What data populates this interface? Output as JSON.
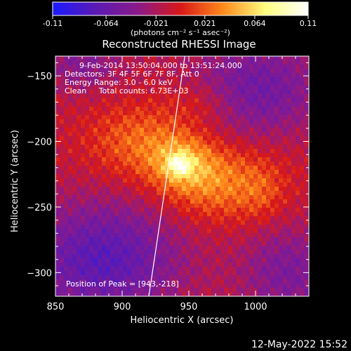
{
  "chart_data": {
    "type": "heatmap",
    "title": "Reconstructed RHESSI Image",
    "xlabel": "Heliocentric X (arcsec)",
    "ylabel": "Heliocentric Y (arcsec)",
    "xlim": [
      850,
      1040
    ],
    "ylim": [
      -318,
      -135
    ],
    "x_ticks": [
      850,
      900,
      950,
      1000
    ],
    "y_ticks": [
      -150,
      -200,
      -250,
      -300
    ],
    "colorbar": {
      "range": [
        -0.11,
        0.11
      ],
      "ticks": [
        "-0.11",
        "-0.064",
        "-0.021",
        "0.021",
        "0.064",
        "0.11"
      ],
      "unit_label": "(photons cm⁻² s⁻¹ asec⁻²)",
      "colors": [
        "#1a1aff",
        "#5a1ab4",
        "#8a1a8a",
        "#d81818",
        "#ff8a1a",
        "#ffff80",
        "#ffffff"
      ]
    },
    "annotations": [
      "9-Feb-2014 13:50:04.000 to 13:51:24.000",
      "Detectors: 3F 4F 5F 6F 7F 8F, Att 0",
      "Energy Range: 3.0 - 6.0 keV",
      "Clean     Total counts: 6.73E+03"
    ],
    "peak_label": "Position of Peak = [943,-218]",
    "peak": {
      "x": 943,
      "y": -218,
      "value": 0.11
    },
    "sources": [
      {
        "x": 943,
        "y": -218,
        "sx": 5,
        "sy": 5,
        "amp": 0.055
      },
      {
        "x": 945,
        "y": -217,
        "sx": 16,
        "sy": 14,
        "amp": 0.045
      },
      {
        "x": 975,
        "y": -232,
        "sx": 30,
        "sy": 20,
        "amp": 0.045
      },
      {
        "x": 915,
        "y": -200,
        "sx": 28,
        "sy": 20,
        "amp": 0.038
      },
      {
        "x": 960,
        "y": -170,
        "sx": 20,
        "sy": 13,
        "amp": 0.02
      },
      {
        "x": 1005,
        "y": -240,
        "sx": 10,
        "sy": 14,
        "amp": 0.012
      },
      {
        "x": 885,
        "y": -290,
        "sx": 40,
        "sy": 30,
        "amp": -0.06
      },
      {
        "x": 1000,
        "y": -160,
        "sx": 35,
        "sy": 25,
        "amp": -0.045
      },
      {
        "x": 1025,
        "y": -300,
        "sx": 25,
        "sy": 25,
        "amp": -0.035
      },
      {
        "x": 870,
        "y": -140,
        "sx": 20,
        "sy": 15,
        "amp": -0.03
      }
    ],
    "limb": [
      [
        947,
        -135
      ],
      [
        920,
        -318
      ]
    ],
    "grid": false
  },
  "footer": {
    "timestamp": "12-May-2022 15:52"
  }
}
